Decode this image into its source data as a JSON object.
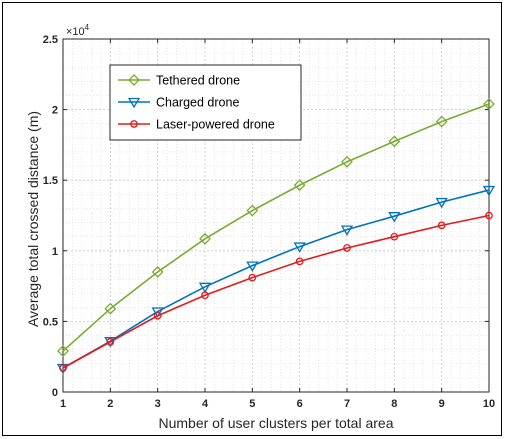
{
  "chart_data": {
    "type": "line",
    "title": "",
    "xlabel": "Number of user clusters per total area",
    "ylabel": "Average total crossed distance (m)",
    "y_exponent_base": "×10",
    "y_exponent_power": "4",
    "x": [
      1,
      2,
      3,
      4,
      5,
      6,
      7,
      8,
      9,
      10
    ],
    "xlim": [
      1,
      10
    ],
    "ylim": [
      0,
      2.5
    ],
    "x_ticks": [
      1,
      2,
      3,
      4,
      5,
      6,
      7,
      8,
      9,
      10
    ],
    "y_ticks": [
      0,
      0.5,
      1,
      1.5,
      2,
      2.5
    ],
    "y_tick_labels": [
      "0",
      "0.5",
      "1",
      "1.5",
      "2",
      "2.5"
    ],
    "grid": true,
    "legend_position": "top-left",
    "series": [
      {
        "name": "Tethered drone",
        "color": "#77AC30",
        "marker": "diamond",
        "values": [
          0.29,
          0.59,
          0.85,
          1.085,
          1.285,
          1.465,
          1.63,
          1.775,
          1.915,
          2.04
        ]
      },
      {
        "name": "Charged drone",
        "color": "#0072BD",
        "marker": "triangle-down",
        "values": [
          0.17,
          0.36,
          0.57,
          0.745,
          0.895,
          1.03,
          1.15,
          1.245,
          1.345,
          1.43
        ]
      },
      {
        "name": "Laser-powered drone",
        "color": "#E41A1C",
        "marker": "circle",
        "values": [
          0.17,
          0.355,
          0.54,
          0.685,
          0.81,
          0.925,
          1.02,
          1.1,
          1.18,
          1.25
        ]
      }
    ]
  }
}
